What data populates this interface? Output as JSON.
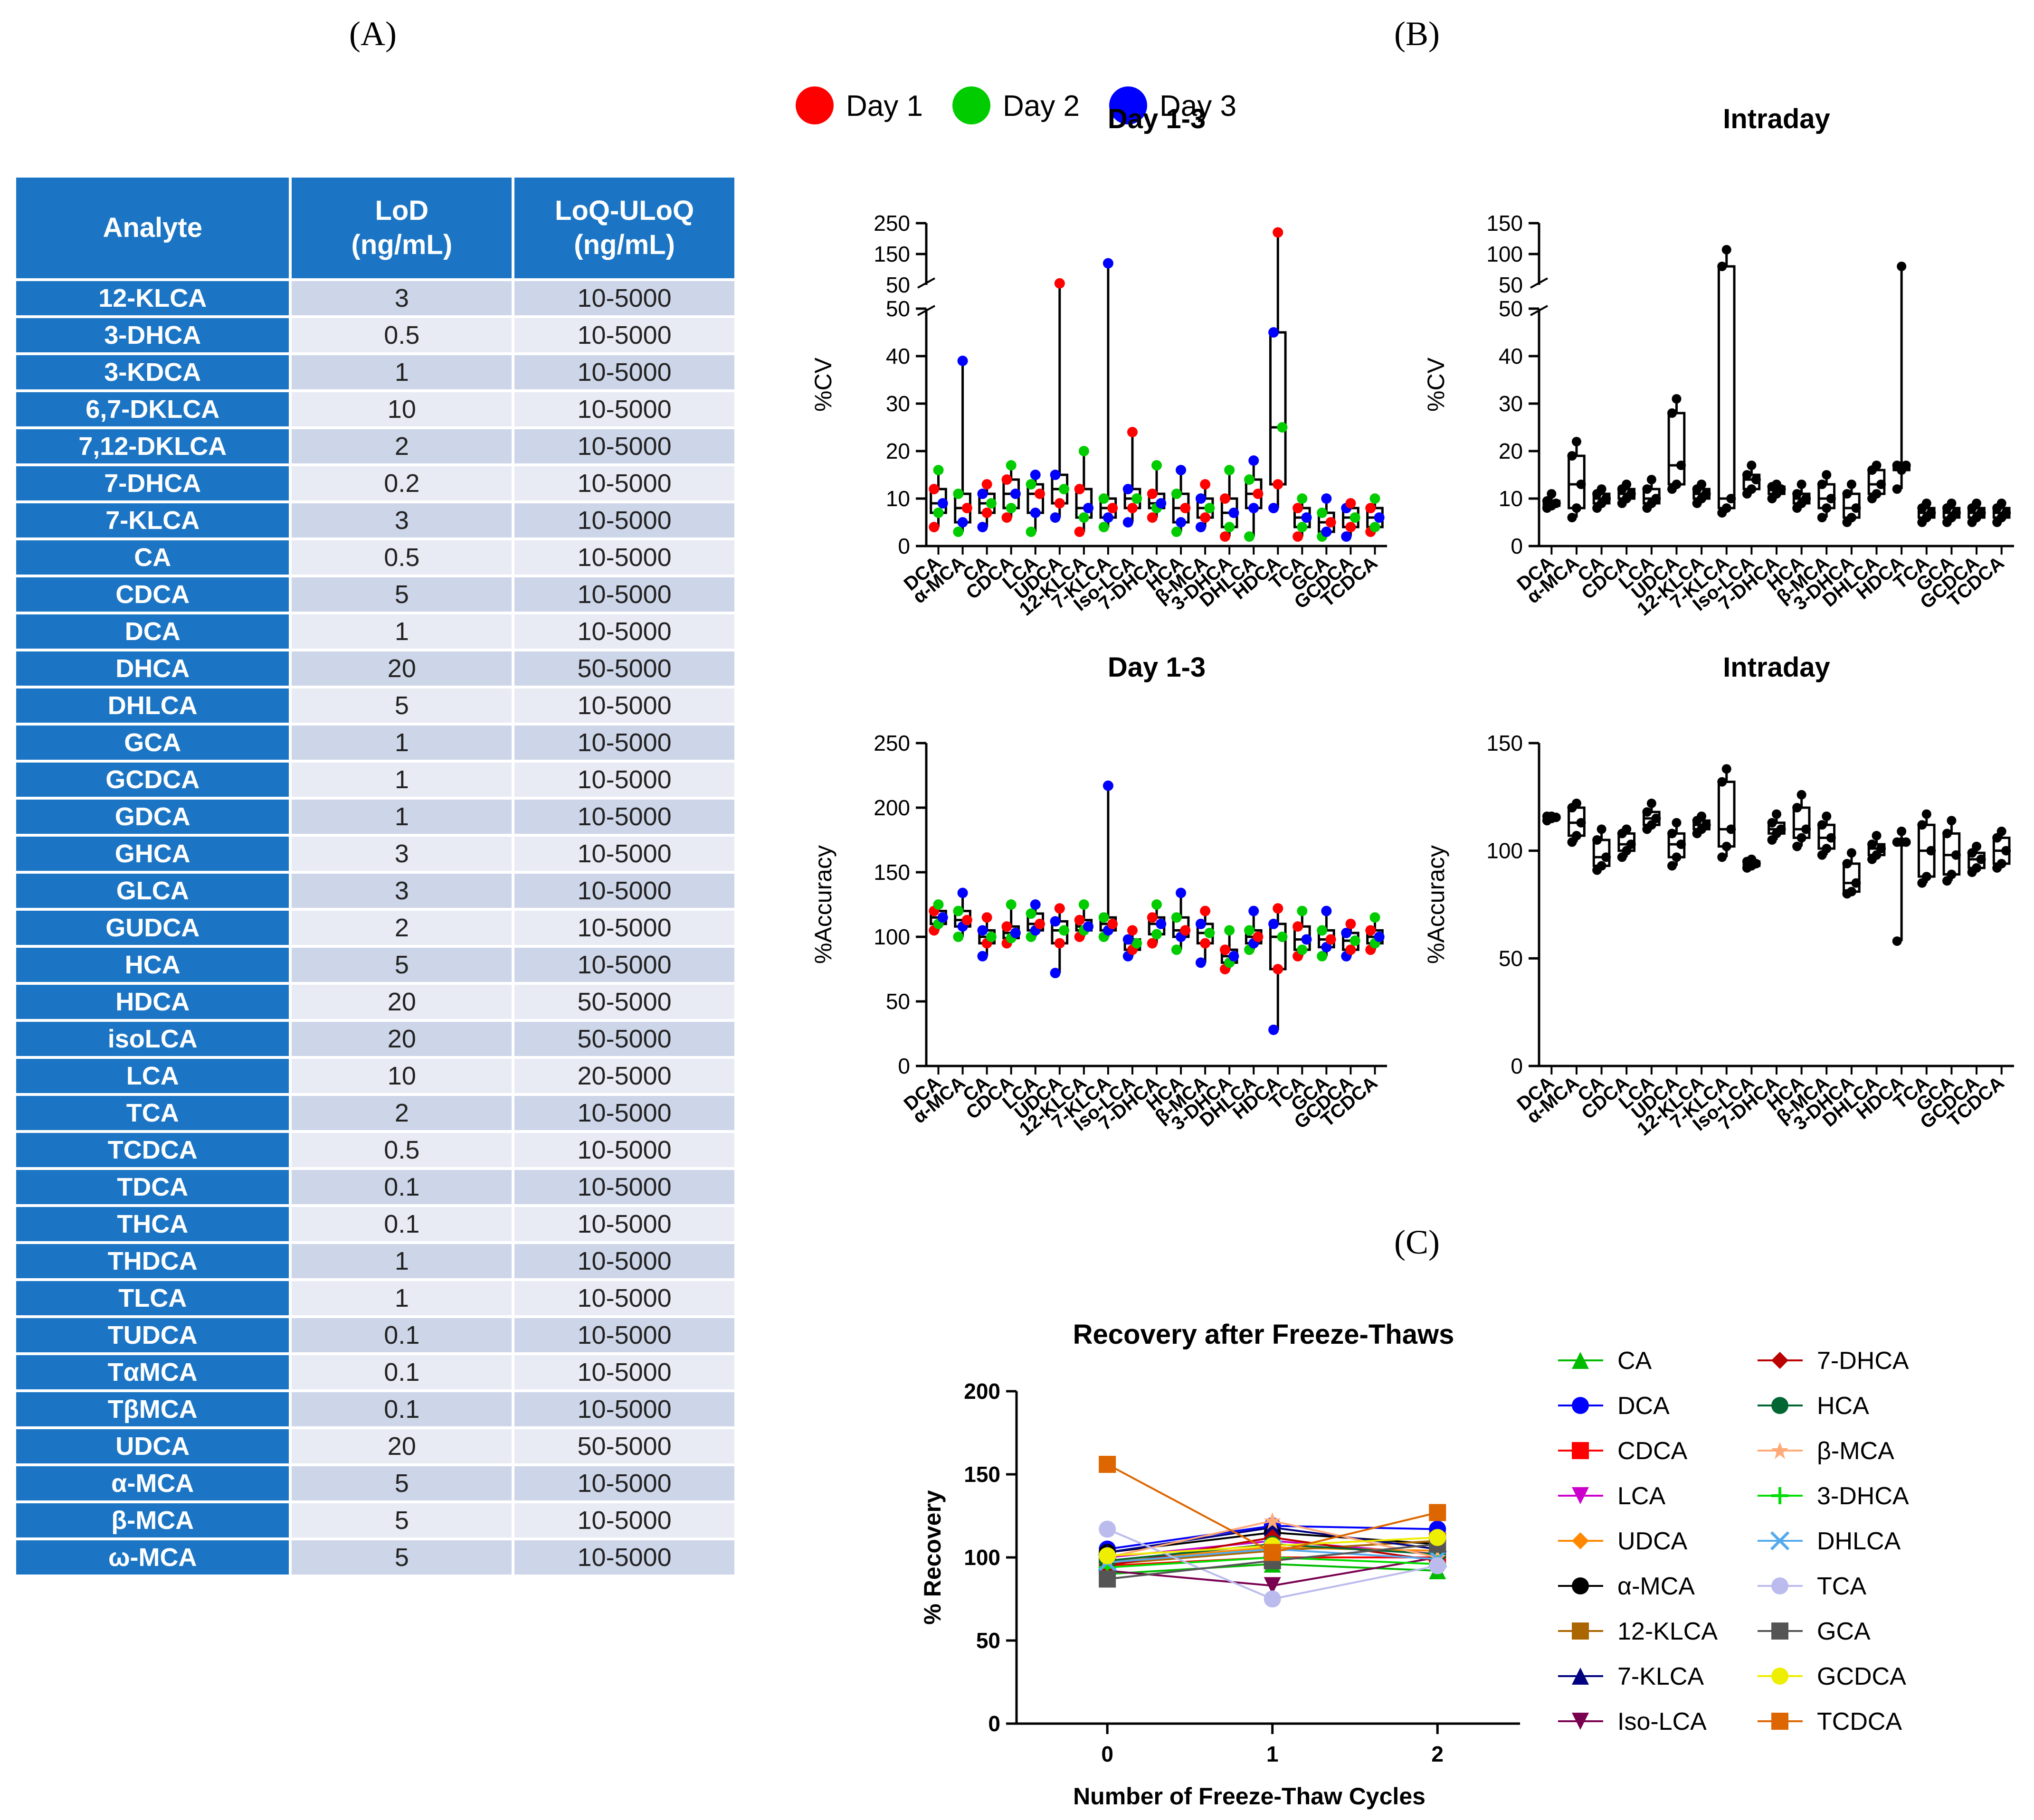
{
  "labels": {
    "a": "(A)",
    "b": "(B)",
    "c": "(C)"
  },
  "table": {
    "headers": [
      "Analyte",
      "LoD\n(ng/mL)",
      "LoQ-ULoQ\n(ng/mL)"
    ],
    "rows": [
      [
        "12-KLCA",
        "3",
        "10-5000"
      ],
      [
        "3-DHCA",
        "0.5",
        "10-5000"
      ],
      [
        "3-KDCA",
        "1",
        "10-5000"
      ],
      [
        "6,7-DKLCA",
        "10",
        "10-5000"
      ],
      [
        "7,12-DKLCA",
        "2",
        "10-5000"
      ],
      [
        "7-DHCA",
        "0.2",
        "10-5000"
      ],
      [
        "7-KLCA",
        "3",
        "10-5000"
      ],
      [
        "CA",
        "0.5",
        "10-5000"
      ],
      [
        "CDCA",
        "5",
        "10-5000"
      ],
      [
        "DCA",
        "1",
        "10-5000"
      ],
      [
        "DHCA",
        "20",
        "50-5000"
      ],
      [
        "DHLCA",
        "5",
        "10-5000"
      ],
      [
        "GCA",
        "1",
        "10-5000"
      ],
      [
        "GCDCA",
        "1",
        "10-5000"
      ],
      [
        "GDCA",
        "1",
        "10-5000"
      ],
      [
        "GHCA",
        "3",
        "10-5000"
      ],
      [
        "GLCA",
        "3",
        "10-5000"
      ],
      [
        "GUDCA",
        "2",
        "10-5000"
      ],
      [
        "HCA",
        "5",
        "10-5000"
      ],
      [
        "HDCA",
        "20",
        "50-5000"
      ],
      [
        "isoLCA",
        "20",
        "50-5000"
      ],
      [
        "LCA",
        "10",
        "20-5000"
      ],
      [
        "TCA",
        "2",
        "10-5000"
      ],
      [
        "TCDCA",
        "0.5",
        "10-5000"
      ],
      [
        "TDCA",
        "0.1",
        "10-5000"
      ],
      [
        "THCA",
        "0.1",
        "10-5000"
      ],
      [
        "THDCA",
        "1",
        "10-5000"
      ],
      [
        "TLCA",
        "1",
        "10-5000"
      ],
      [
        "TUDCA",
        "0.1",
        "10-5000"
      ],
      [
        "TαMCA",
        "0.1",
        "10-5000"
      ],
      [
        "TβMCA",
        "0.1",
        "10-5000"
      ],
      [
        "UDCA",
        "20",
        "50-5000"
      ],
      [
        "α-MCA",
        "5",
        "10-5000"
      ],
      [
        "β-MCA",
        "5",
        "10-5000"
      ],
      [
        "ω-MCA",
        "5",
        "10-5000"
      ]
    ]
  },
  "day_legend": [
    {
      "name": "Day 1",
      "color": "#ff0000"
    },
    {
      "name": "Day 2",
      "color": "#00cc00"
    },
    {
      "name": "Day 3",
      "color": "#0000ff"
    }
  ],
  "chart_data": [
    {
      "type": "box",
      "title": "Day 1-3",
      "ylabel": "%CV",
      "categories": [
        "DCA",
        "α-MCA",
        "CA",
        "CDCA",
        "LCA",
        "UDCA",
        "12-KLCA",
        "7-KLCA",
        "Iso-LCA",
        "7-DHCA",
        "HCA",
        "β-MCA",
        "3-DHCA",
        "DHLCA",
        "HDCA",
        "TCA",
        "GCA",
        "GCDCA",
        "TCDCA"
      ],
      "y_break": {
        "lower": [
          0,
          50
        ],
        "upper": [
          50,
          250
        ]
      },
      "lower_ticks": [
        0,
        10,
        20,
        30,
        40,
        50
      ],
      "upper_ticks": [
        50,
        150,
        250
      ],
      "boxes": [
        [
          4,
          7,
          9,
          12,
          16
        ],
        [
          3,
          5,
          8,
          11,
          39
        ],
        [
          4,
          7,
          9,
          11,
          13
        ],
        [
          6,
          8,
          11,
          14,
          17
        ],
        [
          3,
          7,
          11,
          13,
          15
        ],
        [
          6,
          9,
          12,
          15,
          55
        ],
        [
          3,
          6,
          8,
          12,
          20
        ],
        [
          4,
          6,
          8,
          10,
          120
        ],
        [
          5,
          8,
          10,
          12,
          24
        ],
        [
          6,
          8,
          9,
          11,
          17
        ],
        [
          3,
          5,
          8,
          11,
          16
        ],
        [
          4,
          6,
          8,
          10,
          13
        ],
        [
          2,
          4,
          7,
          10,
          16
        ],
        [
          2,
          8,
          11,
          14,
          18
        ],
        [
          8,
          13,
          25,
          45,
          220
        ],
        [
          2,
          4,
          6,
          8,
          10
        ],
        [
          2,
          3,
          5,
          7,
          10
        ],
        [
          2,
          4,
          6,
          8,
          9
        ],
        [
          3,
          4,
          6,
          8,
          10
        ]
      ]
    },
    {
      "type": "box",
      "title": "Intraday",
      "ylabel": "%CV",
      "categories": [
        "DCA",
        "α-MCA",
        "CA",
        "CDCA",
        "LCA",
        "UDCA",
        "12-KLCA",
        "7-KLCA",
        "Iso-LCA",
        "7-DHCA",
        "HCA",
        "β-MCA",
        "3-DHCA",
        "DHLCA",
        "HDCA",
        "TCA",
        "GCA",
        "GCDCA",
        "TCDCA"
      ],
      "y_break": {
        "lower": [
          0,
          50
        ],
        "upper": [
          50,
          150
        ]
      },
      "lower_ticks": [
        0,
        10,
        20,
        30,
        40,
        50
      ],
      "upper_ticks": [
        50,
        100,
        150
      ],
      "boxes": [
        [
          8,
          8.5,
          9,
          9.5,
          11
        ],
        [
          6,
          8,
          13,
          19,
          22
        ],
        [
          8,
          9,
          10,
          11,
          12
        ],
        [
          9,
          10,
          11,
          12,
          13
        ],
        [
          8,
          9,
          10,
          12,
          14
        ],
        [
          12,
          13,
          17,
          28,
          31
        ],
        [
          9,
          10,
          11,
          12,
          13
        ],
        [
          7,
          8,
          10,
          80,
          107
        ],
        [
          11,
          12,
          14,
          15,
          17
        ],
        [
          10,
          11,
          12,
          12.5,
          13
        ],
        [
          8,
          9,
          10,
          11,
          13
        ],
        [
          6,
          8,
          10,
          13,
          15
        ],
        [
          5,
          6,
          8,
          11,
          13
        ],
        [
          10,
          11,
          13,
          16,
          17
        ],
        [
          12,
          16,
          17,
          17,
          80
        ],
        [
          5,
          6,
          7,
          8,
          9
        ],
        [
          5,
          6,
          7,
          8,
          9
        ],
        [
          5,
          6,
          7,
          8,
          9
        ],
        [
          5,
          6,
          7,
          8,
          9
        ]
      ]
    },
    {
      "type": "box",
      "title": "Day 1-3",
      "ylabel": "%Accuracy",
      "categories": [
        "DCA",
        "α-MCA",
        "CA",
        "CDCA",
        "LCA",
        "UDCA",
        "12-KLCA",
        "7-KLCA",
        "Iso-LCA",
        "7-DHCA",
        "HCA",
        "β-MCA",
        "3-DHCA",
        "DHLCA",
        "HDCA",
        "TCA",
        "GCA",
        "GCDCA",
        "TCDCA"
      ],
      "ylim": [
        0,
        250
      ],
      "ticks": [
        0,
        50,
        100,
        150,
        200,
        250
      ],
      "boxes": [
        [
          105,
          110,
          115,
          120,
          125
        ],
        [
          100,
          108,
          113,
          120,
          134
        ],
        [
          85,
          95,
          100,
          105,
          115
        ],
        [
          95,
          99,
          103,
          108,
          125
        ],
        [
          100,
          105,
          110,
          118,
          125
        ],
        [
          72,
          95,
          105,
          112,
          122
        ],
        [
          100,
          105,
          108,
          113,
          125
        ],
        [
          100,
          105,
          110,
          115,
          217
        ],
        [
          85,
          90,
          95,
          98,
          105
        ],
        [
          95,
          102,
          110,
          115,
          125
        ],
        [
          90,
          100,
          105,
          115,
          134
        ],
        [
          80,
          95,
          103,
          110,
          120
        ],
        [
          75,
          80,
          85,
          90,
          105
        ],
        [
          90,
          95,
          100,
          105,
          120
        ],
        [
          28,
          75,
          100,
          110,
          122
        ],
        [
          85,
          90,
          98,
          108,
          120
        ],
        [
          85,
          92,
          98,
          105,
          120
        ],
        [
          85,
          90,
          97,
          103,
          110
        ],
        [
          90,
          95,
          100,
          105,
          115
        ]
      ]
    },
    {
      "type": "box",
      "title": "Intraday",
      "ylabel": "%Accuracy",
      "categories": [
        "DCA",
        "α-MCA",
        "CA",
        "CDCA",
        "LCA",
        "UDCA",
        "12-KLCA",
        "7-KLCA",
        "Iso-LCA",
        "7-DHCA",
        "HCA",
        "β-MCA",
        "3-DHCA",
        "DHLCA",
        "HDCA",
        "TCA",
        "GCA",
        "GCDCA",
        "TCDCA"
      ],
      "ylim": [
        0,
        150
      ],
      "ticks": [
        0,
        50,
        100,
        150
      ],
      "boxes": [
        [
          114,
          115,
          115.5,
          116,
          116
        ],
        [
          104,
          107,
          113,
          120,
          122
        ],
        [
          91,
          93,
          97,
          105,
          110
        ],
        [
          97,
          100,
          103,
          108,
          110
        ],
        [
          110,
          112,
          115,
          118,
          122
        ],
        [
          93,
          97,
          103,
          108,
          113
        ],
        [
          108,
          110,
          112,
          114,
          116
        ],
        [
          97,
          102,
          110,
          132,
          138
        ],
        [
          92,
          93,
          94,
          95,
          96
        ],
        [
          105,
          108,
          110,
          113,
          117
        ],
        [
          102,
          106,
          110,
          120,
          126
        ],
        [
          98,
          101,
          106,
          112,
          116
        ],
        [
          80,
          81,
          85,
          94,
          99
        ],
        [
          96,
          98,
          101,
          103,
          107
        ],
        [
          58,
          104,
          104,
          104,
          109
        ],
        [
          85,
          88,
          100,
          112,
          117
        ],
        [
          86,
          89,
          98,
          108,
          114
        ],
        [
          90,
          92,
          96,
          99,
          102
        ],
        [
          92,
          94,
          100,
          106,
          109
        ]
      ]
    },
    {
      "type": "line",
      "title": "Recovery after Freeze-Thaws",
      "xlabel": "Number of Freeze-Thaw Cycles",
      "ylabel": "% Recovery",
      "x": [
        0,
        1,
        2
      ],
      "xticks": [
        0,
        1,
        2
      ],
      "ylim": [
        0,
        200
      ],
      "yticks": [
        0,
        50,
        100,
        150,
        200
      ],
      "series": [
        {
          "name": "CA",
          "color": "#00bb00",
          "marker": "triangle",
          "values": [
            90,
            96,
            92
          ]
        },
        {
          "name": "DCA",
          "color": "#0000ff",
          "marker": "circle",
          "values": [
            105,
            119,
            117
          ]
        },
        {
          "name": "CDCA",
          "color": "#ff0000",
          "marker": "square",
          "values": [
            95,
            100,
            100
          ]
        },
        {
          "name": "LCA",
          "color": "#cc00cc",
          "marker": "triangle-down",
          "values": [
            100,
            110,
            102
          ]
        },
        {
          "name": "UDCA",
          "color": "#ff8800",
          "marker": "diamond",
          "values": [
            98,
            106,
            104
          ]
        },
        {
          "name": "α-MCA",
          "color": "#000000",
          "marker": "circle",
          "values": [
            103,
            115,
            108
          ]
        },
        {
          "name": "12-KLCA",
          "color": "#aa6600",
          "marker": "square",
          "values": [
            96,
            104,
            110
          ]
        },
        {
          "name": "7-KLCA",
          "color": "#000080",
          "marker": "triangle",
          "values": [
            103,
            118,
            105
          ]
        },
        {
          "name": "Iso-LCA",
          "color": "#7a0050",
          "marker": "triangle-down",
          "values": [
            92,
            83,
            100
          ]
        },
        {
          "name": "7-DHCA",
          "color": "#bb0000",
          "marker": "diamond",
          "values": [
            95,
            112,
            98
          ]
        },
        {
          "name": "HCA",
          "color": "#006633",
          "marker": "circle",
          "values": [
            98,
            108,
            102
          ]
        },
        {
          "name": "β-MCA",
          "color": "#ffaa77",
          "marker": "star",
          "values": [
            100,
            122,
            100
          ]
        },
        {
          "name": "3-DHCA",
          "color": "#00dd00",
          "marker": "plus",
          "values": [
            94,
            100,
            96
          ]
        },
        {
          "name": "DHLCA",
          "color": "#55aaee",
          "marker": "cross",
          "values": [
            97,
            105,
            99
          ]
        },
        {
          "name": "TCA",
          "color": "#bbbbee",
          "marker": "circle",
          "values": [
            117,
            75,
            95
          ]
        },
        {
          "name": "GCA",
          "color": "#555555",
          "marker": "square",
          "values": [
            87,
            98,
            108
          ]
        },
        {
          "name": "GCDCA",
          "color": "#eeee00",
          "marker": "circle",
          "values": [
            101,
            107,
            112
          ]
        },
        {
          "name": "TCDCA",
          "color": "#dd6600",
          "marker": "square",
          "values": [
            156,
            103,
            127
          ]
        }
      ]
    }
  ]
}
